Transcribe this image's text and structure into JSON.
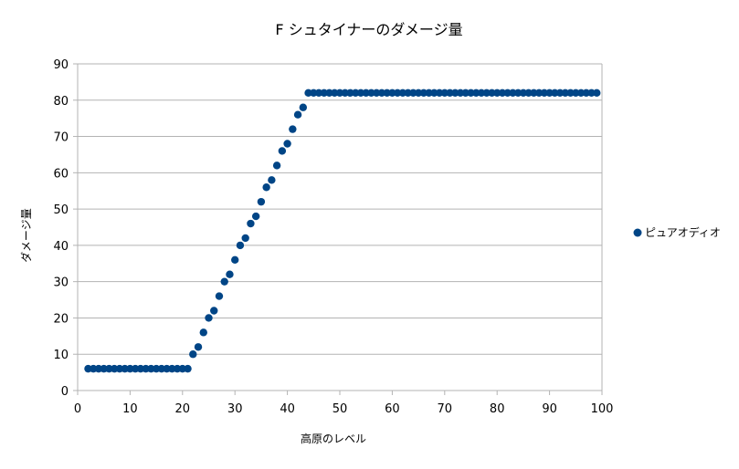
{
  "chart_data": {
    "type": "scatter",
    "title": "F シュタイナーのダメージ量",
    "xlabel": "高原のレベル",
    "ylabel": "ダメージ量",
    "xlim": [
      0,
      100
    ],
    "ylim": [
      0,
      90
    ],
    "xticks": [
      0,
      10,
      20,
      30,
      40,
      50,
      60,
      70,
      80,
      90,
      100
    ],
    "yticks": [
      0,
      10,
      20,
      30,
      40,
      50,
      60,
      70,
      80,
      90
    ],
    "grid": "horizontal",
    "legend_position": "right",
    "series": [
      {
        "name": "ピュアオディオ",
        "color": "#004586",
        "x": [
          2,
          3,
          4,
          5,
          6,
          7,
          8,
          9,
          10,
          11,
          12,
          13,
          14,
          15,
          16,
          17,
          18,
          19,
          20,
          21,
          22,
          23,
          24,
          25,
          26,
          27,
          28,
          29,
          30,
          31,
          32,
          33,
          34,
          35,
          36,
          37,
          38,
          39,
          40,
          41,
          42,
          43,
          44,
          45,
          46,
          47,
          48,
          49,
          50,
          51,
          52,
          53,
          54,
          55,
          56,
          57,
          58,
          59,
          60,
          61,
          62,
          63,
          64,
          65,
          66,
          67,
          68,
          69,
          70,
          71,
          72,
          73,
          74,
          75,
          76,
          77,
          78,
          79,
          80,
          81,
          82,
          83,
          84,
          85,
          86,
          87,
          88,
          89,
          90,
          91,
          92,
          93,
          94,
          95,
          96,
          97,
          98,
          99
        ],
        "y": [
          6,
          6,
          6,
          6,
          6,
          6,
          6,
          6,
          6,
          6,
          6,
          6,
          6,
          6,
          6,
          6,
          6,
          6,
          6,
          6,
          10,
          12,
          16,
          20,
          22,
          26,
          30,
          32,
          36,
          40,
          42,
          46,
          48,
          52,
          56,
          58,
          62,
          66,
          68,
          72,
          76,
          78,
          82,
          82,
          82,
          82,
          82,
          82,
          82,
          82,
          82,
          82,
          82,
          82,
          82,
          82,
          82,
          82,
          82,
          82,
          82,
          82,
          82,
          82,
          82,
          82,
          82,
          82,
          82,
          82,
          82,
          82,
          82,
          82,
          82,
          82,
          82,
          82,
          82,
          82,
          82,
          82,
          82,
          82,
          82,
          82,
          82,
          82,
          82,
          82,
          82,
          82,
          82,
          82,
          82,
          82,
          82,
          82
        ]
      }
    ]
  }
}
